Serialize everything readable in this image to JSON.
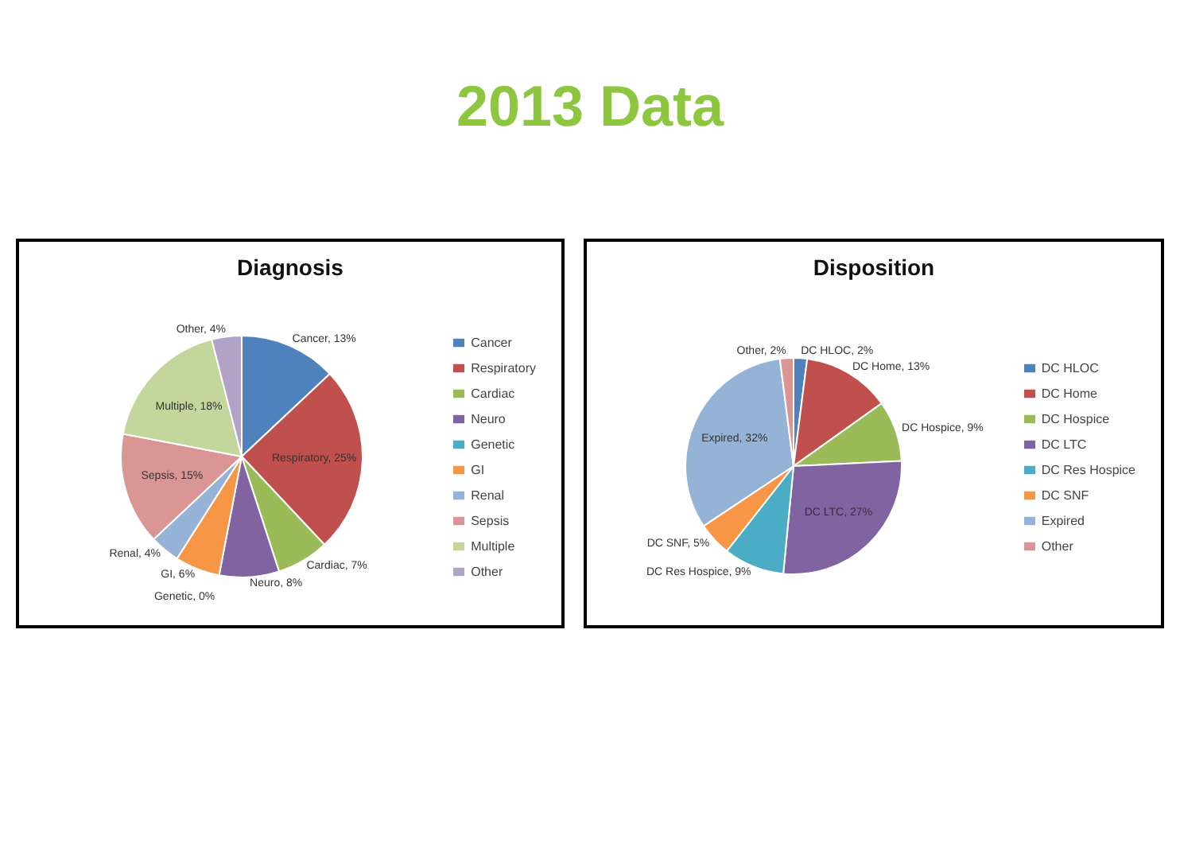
{
  "chart_data": [
    {
      "type": "pie",
      "title": "Diagnosis",
      "annotations": [
        "2013 Data"
      ],
      "categories": [
        "Cancer",
        "Respiratory",
        "Cardiac",
        "Neuro",
        "Genetic",
        "GI",
        "Renal",
        "Sepsis",
        "Multiple",
        "Other"
      ],
      "values": [
        13,
        25,
        7,
        8,
        0,
        6,
        4,
        15,
        18,
        4
      ],
      "colors": [
        "#4f81bd",
        "#c0504d",
        "#9bbb59",
        "#8064a2",
        "#4bacc6",
        "#f79646",
        "#95b3d7",
        "#d99694",
        "#c3d69b",
        "#b2a2c7"
      ],
      "legend": "right",
      "value_labels": [
        "Cancer, 13%",
        "Respiratory, 25%",
        "Cardiac, 7%",
        "Neuro, 8%",
        "Genetic, 0%",
        "GI, 6%",
        "Renal, 4%",
        "Sepsis, 15%",
        "Multiple, 18%",
        "Other, 4%"
      ]
    },
    {
      "type": "pie",
      "title": "Disposition",
      "categories": [
        "DC HLOC",
        "DC Home",
        "DC Hospice",
        "DC LTC",
        "DC Res Hospice",
        "DC SNF",
        "Expired",
        "Other"
      ],
      "values": [
        2,
        13,
        9,
        27,
        9,
        5,
        32,
        2
      ],
      "colors": [
        "#4f81bd",
        "#c0504d",
        "#9bbb59",
        "#8064a2",
        "#4bacc6",
        "#f79646",
        "#95b3d7",
        "#d99694"
      ],
      "legend": "right",
      "value_labels": [
        "DC HLOC, 2%",
        "DC Home, 13%",
        "DC Hospice, 9%",
        "DC LTC, 27%",
        "DC Res Hospice, 9%",
        "DC SNF, 5%",
        "Expired, 32%",
        "Other, 2%"
      ]
    }
  ]
}
